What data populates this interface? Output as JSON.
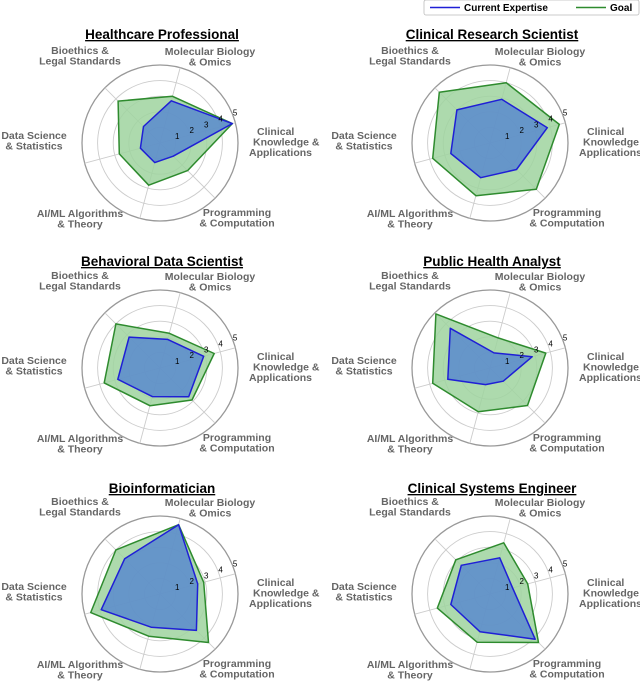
{
  "legend": {
    "items": [
      {
        "label": "Current Expertise",
        "color": "#1f1fd6"
      },
      {
        "label": "Goal",
        "color": "#2e8b2e"
      }
    ]
  },
  "colors": {
    "current_fill": "#4f7fd3",
    "goal_fill": "#9fd49f",
    "grid": "#cccccc",
    "outer": "#999999"
  },
  "chart_data": [
    {
      "type": "radar",
      "title": "Healthcare Professional",
      "axes": [
        "Clinical\nKnowledge &\nApplications",
        "Molecular Biology\n& Omics",
        "Bioethics &\nLegal Standards",
        "Data Science\n& Statistics",
        "AI/ML Algorithms\n& Theory",
        "Programming\n& Computation"
      ],
      "rlim": [
        0,
        5
      ],
      "ticks": [
        1,
        2,
        3,
        4,
        5
      ],
      "series": [
        {
          "name": "Current Expertise",
          "values": [
            4.8,
            2.8,
            1.5,
            1.3,
            1.3,
            1.2
          ]
        },
        {
          "name": "Goal",
          "values": [
            4.8,
            3.1,
            3.8,
            2.7,
            2.8,
            2.5
          ]
        }
      ]
    },
    {
      "type": "radar",
      "title": "Clinical Research Scientist",
      "axes": [
        "Clinical\nKnowledge &\nApplications",
        "Molecular Biology\n& Omics",
        "Bioethics &\nLegal Standards",
        "Data Science\n& Statistics",
        "AI/ML Algorithms\n& Theory",
        "Programming\n& Computation"
      ],
      "rlim": [
        0,
        5
      ],
      "ticks": [
        1,
        2,
        3,
        4,
        5
      ],
      "series": [
        {
          "name": "Current Expertise",
          "values": [
            3.8,
            2.9,
            3.0,
            2.6,
            2.3,
            2.4
          ]
        },
        {
          "name": "Goal",
          "values": [
            4.6,
            4.0,
            4.6,
            3.8,
            3.5,
            4.2
          ]
        }
      ]
    },
    {
      "type": "radar",
      "title": "Behavioral Data Scientist",
      "axes": [
        "Clinical\nKnowledge &\nApplications",
        "Molecular Biology\n& Omics",
        "Bioethics &\nLegal Standards",
        "Data Science\n& Statistics",
        "AI/ML Algorithms\n& Theory",
        "Programming\n& Computation"
      ],
      "rlim": [
        0,
        5
      ],
      "ticks": [
        1,
        2,
        3,
        4,
        5
      ],
      "series": [
        {
          "name": "Current Expertise",
          "values": [
            2.9,
            1.9,
            2.8,
            2.8,
            1.9,
            2.6
          ]
        },
        {
          "name": "Goal",
          "values": [
            3.6,
            2.3,
            4.0,
            3.7,
            2.5,
            2.9
          ]
        }
      ]
    },
    {
      "type": "radar",
      "title": "Public Health Analyst",
      "axes": [
        "Clinical\nKnowledge &\nApplications",
        "Molecular Biology\n& Omics",
        "Bioethics &\nLegal Standards",
        "Data Science\n& Statistics",
        "AI/ML Algorithms\n& Theory",
        "Programming\n& Computation"
      ],
      "rlim": [
        0,
        5
      ],
      "ticks": [
        1,
        2,
        3,
        4,
        5
      ],
      "series": [
        {
          "name": "Current Expertise",
          "values": [
            2.8,
            1.0,
            3.6,
            2.8,
            1.1,
            1.2
          ]
        },
        {
          "name": "Goal",
          "values": [
            3.7,
            2.0,
            4.9,
            3.8,
            2.9,
            3.4
          ]
        }
      ]
    },
    {
      "type": "radar",
      "title": "Bioinformatician",
      "axes": [
        "Clinical\nKnowledge &\nApplications",
        "Molecular Biology\n& Omics",
        "Bioethics &\nLegal Standards",
        "Data Science\n& Statistics",
        "AI/ML Algorithms\n& Theory",
        "Programming\n& Computation"
      ],
      "rlim": [
        0,
        5
      ],
      "ticks": [
        1,
        2,
        3,
        4,
        5
      ],
      "series": [
        {
          "name": "Current Expertise",
          "values": [
            2.5,
            4.6,
            3.2,
            3.9,
            2.2,
            3.3
          ]
        },
        {
          "name": "Goal",
          "values": [
            2.9,
            4.6,
            4.0,
            4.6,
            2.8,
            4.4
          ]
        }
      ]
    },
    {
      "type": "radar",
      "title": "Clinical Systems Engineer",
      "axes": [
        "Clinical\nKnowledge &\nApplications",
        "Molecular Biology\n& Omics",
        "Bioethics &\nLegal Standards",
        "Data Science\n& Statistics",
        "AI/ML Algorithms\n& Theory",
        "Programming\n& Computation"
      ],
      "rlim": [
        0,
        5
      ],
      "ticks": [
        1,
        2,
        3,
        4,
        5
      ],
      "series": [
        {
          "name": "Current Expertise",
          "values": [
            1.5,
            2.4,
            2.6,
            2.6,
            2.5,
            4.1
          ]
        },
        {
          "name": "Goal",
          "values": [
            2.5,
            3.4,
            3.1,
            3.5,
            3.2,
            4.4
          ]
        }
      ]
    }
  ]
}
